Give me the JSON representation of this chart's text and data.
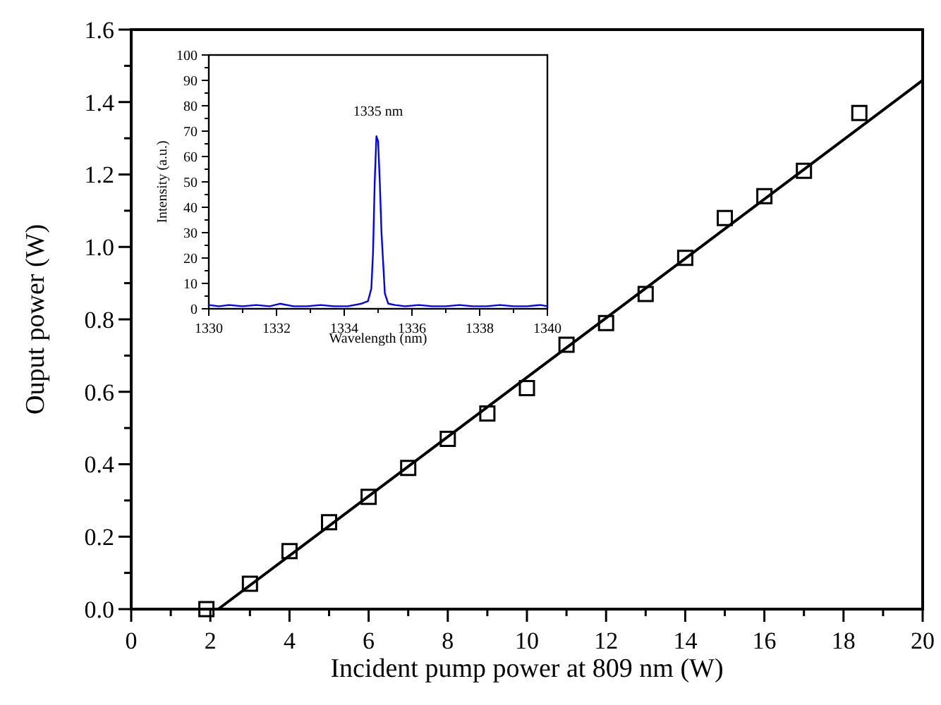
{
  "chart_data": [
    {
      "type": "scatter",
      "xlabel": "Incident pump power at 809 nm (W)",
      "ylabel": "Ouput power (W)",
      "xlim": [
        0,
        20
      ],
      "ylim": [
        0,
        1.6
      ],
      "xticks": [
        0,
        {
          "value": 1,
          "label": null
        },
        2,
        {
          "value": 3,
          "label": null
        },
        4,
        {
          "value": 5,
          "label": null
        },
        6,
        {
          "value": 7,
          "label": null
        },
        8,
        {
          "value": 9,
          "label": null
        },
        10,
        {
          "value": 11,
          "label": null
        },
        12,
        {
          "value": 13,
          "label": null
        },
        14,
        {
          "value": 15,
          "label": null
        },
        16,
        {
          "value": 17,
          "label": null
        },
        18,
        {
          "value": 19,
          "label": null
        },
        20
      ],
      "yticks": [
        {
          "value": 0,
          "label": "0.0"
        },
        {
          "value": 0.1,
          "label": null
        },
        0.2,
        {
          "value": 0.3,
          "label": null
        },
        0.4,
        {
          "value": 0.5,
          "label": null
        },
        0.6,
        {
          "value": 0.7,
          "label": null
        },
        0.8,
        {
          "value": 0.9,
          "label": null
        },
        {
          "value": 1,
          "label": "1.0"
        },
        {
          "value": 1.1,
          "label": null
        },
        1.2,
        {
          "value": 1.3,
          "label": null
        },
        1.4,
        {
          "value": 1.5,
          "label": null
        },
        1.6
      ],
      "marker": "square",
      "grid": false,
      "series": [
        {
          "color": "#000000",
          "x": [
            1.9,
            3,
            4,
            5,
            6,
            7,
            8,
            9,
            10,
            11,
            12,
            13,
            14,
            15,
            16,
            17,
            18.4
          ],
          "values": [
            0,
            0.07,
            0.16,
            0.24,
            0.31,
            0.39,
            0.47,
            0.54,
            0.61,
            0.73,
            0.79,
            0.87,
            0.97,
            1.08,
            1.14,
            1.21,
            1.37
          ]
        },
        {
          "type": "line",
          "marker": "none",
          "color": "#000000",
          "x": [
            2.2,
            20
          ],
          "values": [
            0,
            1.46
          ]
        }
      ]
    },
    {
      "type": "line",
      "xlabel": "Wavelength (nm)",
      "ylabel": "Intensity (a.u.)",
      "xlim": [
        1330,
        1340
      ],
      "ylim": [
        0,
        100
      ],
      "xticks": [
        1330,
        {
          "value": 1331,
          "label": null
        },
        1332,
        {
          "value": 1333,
          "label": null
        },
        1334,
        {
          "value": 1335,
          "label": null
        },
        1336,
        {
          "value": 1337,
          "label": null
        },
        1338,
        {
          "value": 1339,
          "label": null
        },
        1340
      ],
      "yticks": [
        0,
        {
          "value": 5,
          "label": null
        },
        10,
        {
          "value": 15,
          "label": null
        },
        20,
        {
          "value": 25,
          "label": null
        },
        30,
        {
          "value": 35,
          "label": null
        },
        40,
        {
          "value": 45,
          "label": null
        },
        50,
        {
          "value": 55,
          "label": null
        },
        60,
        {
          "value": 65,
          "label": null
        },
        70,
        {
          "value": 75,
          "label": null
        },
        80,
        {
          "value": 85,
          "label": null
        },
        90,
        {
          "value": 95,
          "label": null
        },
        100
      ],
      "grid": false,
      "marker": "none",
      "annotations": [
        "1335 nm"
      ],
      "series": [
        {
          "color": "#0000ff",
          "x": [
            1330,
            1330.3,
            1330.6,
            1331,
            1331.4,
            1331.8,
            1332.1,
            1332.5,
            1332.9,
            1333.3,
            1333.7,
            1334.1,
            1334.5,
            1334.7,
            1334.8,
            1334.85,
            1334.9,
            1334.95,
            1335,
            1335.05,
            1335.1,
            1335.15,
            1335.2,
            1335.3,
            1335.5,
            1335.8,
            1336.2,
            1336.6,
            1337,
            1337.4,
            1337.8,
            1338.2,
            1338.6,
            1339,
            1339.4,
            1339.8,
            1340
          ],
          "values": [
            1.5,
            1,
            1.5,
            1,
            1.5,
            1,
            2,
            1,
            1,
            1.5,
            1,
            1,
            2,
            3,
            8,
            22,
            50,
            68,
            66,
            50,
            30,
            18,
            6,
            2,
            1.5,
            1,
            1.5,
            1,
            1,
            1.5,
            1,
            1,
            1.5,
            1,
            1,
            1.5,
            1
          ]
        }
      ]
    }
  ]
}
